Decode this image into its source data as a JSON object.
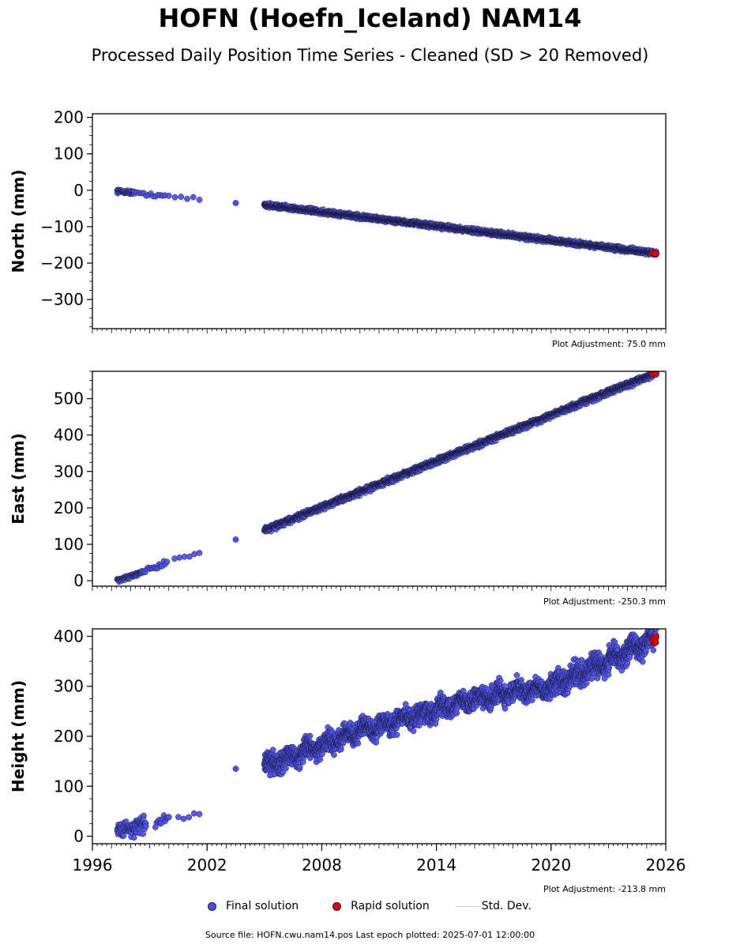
{
  "title": "HOFN (Hoefn_Iceland) NAM14",
  "subtitle": "Processed Daily Position Time Series - Cleaned (SD > 20 Removed)",
  "colors": {
    "final": "#4b4fe6",
    "rapid": "#e00000",
    "stddev": "#cccccc",
    "edge": "#1a1a3a"
  },
  "legend": {
    "final": "Final solution",
    "rapid": "Rapid solution",
    "stddev": "Std. Dev."
  },
  "footer": {
    "source": "Source file: HOFN.cwu.nam14.pos  Last epoch plotted: 2025-07-01 12:00:00"
  },
  "chart_data": [
    {
      "type": "scatter",
      "ylabel": "North (mm)",
      "adjustment": "Plot Adjustment: 75.0 mm",
      "xlim": [
        1996,
        2026
      ],
      "ylim": [
        -380,
        210
      ],
      "yticks": [
        200,
        100,
        0,
        -100,
        -200,
        -300
      ],
      "ytick_labels": [
        "200",
        "100",
        "0",
        "−100",
        "−200",
        "−300"
      ],
      "final_segments": [
        {
          "x0": 1997.3,
          "x1": 1998.2,
          "y0": -2,
          "y1": -7,
          "scatter": 3,
          "density": 50
        },
        {
          "x0": 1998.2,
          "x1": 1999.8,
          "y0": -8,
          "y1": -15,
          "scatter": 3,
          "density": 8
        },
        {
          "x0": 2000.0,
          "x1": 2001.6,
          "y0": -17,
          "y1": -25,
          "scatter": 3,
          "density": 3
        },
        {
          "x0": 2005.0,
          "x1": 2025.5,
          "y0": -40,
          "y1": -173,
          "scatter": 4,
          "density": 120
        }
      ],
      "final_points": [
        [
          2003.5,
          -35
        ]
      ],
      "rapid_points": [
        [
          2025.3,
          -172
        ],
        [
          2025.4,
          -173
        ],
        [
          2025.5,
          -174
        ],
        [
          2025.45,
          -174
        ]
      ]
    },
    {
      "type": "scatter",
      "ylabel": "East (mm)",
      "adjustment": "Plot Adjustment: -250.3 mm",
      "xlim": [
        1996,
        2026
      ],
      "ylim": [
        -15,
        575
      ],
      "yticks": [
        0,
        100,
        200,
        300,
        400,
        500
      ],
      "ytick_labels": [
        "0",
        "100",
        "200",
        "300",
        "400",
        "500"
      ],
      "final_segments": [
        {
          "x0": 1997.3,
          "x1": 1998.6,
          "y0": 0,
          "y1": 22,
          "scatter": 3,
          "density": 50
        },
        {
          "x0": 1998.6,
          "x1": 1999.9,
          "y0": 25,
          "y1": 50,
          "scatter": 5,
          "density": 12
        },
        {
          "x0": 2000.3,
          "x1": 2001.6,
          "y0": 60,
          "y1": 75,
          "scatter": 3,
          "density": 4
        },
        {
          "x0": 2005.0,
          "x1": 2025.5,
          "y0": 138,
          "y1": 570,
          "scatter": 5,
          "density": 120
        }
      ],
      "final_points": [
        [
          2003.5,
          113
        ]
      ],
      "rapid_points": [
        [
          2025.3,
          568
        ],
        [
          2025.4,
          570
        ],
        [
          2025.5,
          572
        ]
      ]
    },
    {
      "type": "scatter",
      "ylabel": "Height (mm)",
      "adjustment": "Plot Adjustment: -213.8 mm",
      "xlim": [
        1996,
        2026
      ],
      "ylim": [
        -15,
        415
      ],
      "yticks": [
        0,
        100,
        200,
        300,
        400
      ],
      "ytick_labels": [
        "0",
        "100",
        "200",
        "300",
        "400"
      ],
      "xticks": [
        1996,
        2002,
        2008,
        2014,
        2020,
        2026
      ],
      "xtick_labels": [
        "1996",
        "2002",
        "2008",
        "2014",
        "2020",
        "2026"
      ],
      "final_segments": [
        {
          "x0": 1997.3,
          "x1": 1998.8,
          "y0": 12,
          "y1": 22,
          "scatter": 12,
          "density": 60
        },
        {
          "x0": 1999.3,
          "x1": 2000.0,
          "y0": 25,
          "y1": 35,
          "scatter": 12,
          "density": 15
        },
        {
          "x0": 2000.5,
          "x1": 2001.6,
          "y0": 35,
          "y1": 45,
          "scatter": 4,
          "density": 4
        },
        {
          "x0": 2005.0,
          "x1": 2010.0,
          "y0": 140,
          "y1": 210,
          "scatter": 14,
          "density": 120
        },
        {
          "x0": 2010.0,
          "x1": 2016.0,
          "y0": 210,
          "y1": 275,
          "scatter": 14,
          "density": 120
        },
        {
          "x0": 2016.0,
          "x1": 2020.0,
          "y0": 275,
          "y1": 300,
          "scatter": 14,
          "density": 120
        },
        {
          "x0": 2020.0,
          "x1": 2025.5,
          "y0": 300,
          "y1": 395,
          "scatter": 16,
          "density": 120
        }
      ],
      "final_points": [
        [
          2003.5,
          135
        ],
        [
          2005.3,
          122
        ]
      ],
      "rapid_points": [
        [
          2025.3,
          392
        ],
        [
          2025.4,
          397
        ],
        [
          2025.5,
          400
        ],
        [
          2025.45,
          388
        ]
      ]
    }
  ]
}
